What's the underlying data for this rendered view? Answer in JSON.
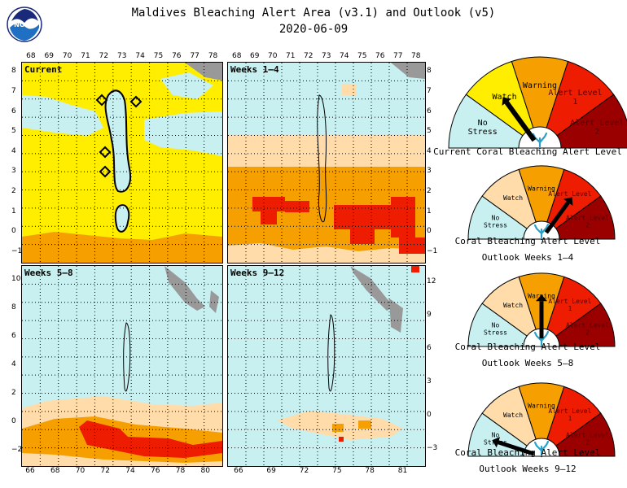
{
  "header": {
    "title": "Maldives Bleaching Alert Area (v3.1) and Outlook (v5)",
    "date": "2020-06-09",
    "logo_text": "NOAA"
  },
  "colors": {
    "no_stress": "#c8f0f0",
    "watch": "#ffdcaa",
    "watch_current": "#ffee00",
    "warning": "#f5a000",
    "alert1": "#ee1c00",
    "alert2": "#9b0000",
    "land": "#999999",
    "grid": "#000000"
  },
  "panels": [
    {
      "label": "Current",
      "top_ticks": [
        "68",
        "69",
        "70",
        "71",
        "72",
        "73",
        "74",
        "75",
        "76",
        "77",
        "78"
      ],
      "left_ticks": [
        "8",
        "7",
        "6",
        "5",
        "4",
        "3",
        "2",
        "1",
        "0",
        "−1"
      ]
    },
    {
      "label": "Weeks 1–4",
      "top_ticks": [
        "68",
        "69",
        "70",
        "71",
        "72",
        "73",
        "74",
        "75",
        "76",
        "77",
        "78"
      ],
      "right_ticks": [
        "8",
        "7",
        "6",
        "5",
        "4",
        "3",
        "2",
        "1",
        "0",
        "−1"
      ]
    },
    {
      "label": "Weeks 5–8",
      "left_ticks": [
        "10",
        "8",
        "6",
        "4",
        "2",
        "0",
        "−2"
      ],
      "bottom_ticks": [
        "66",
        "68",
        "70",
        "72",
        "74",
        "76",
        "78",
        "80"
      ]
    },
    {
      "label": "Weeks 9–12",
      "right_ticks": [
        "12",
        "9",
        "6",
        "3",
        "0",
        "−3"
      ],
      "bottom_ticks": [
        "66",
        "69",
        "72",
        "75",
        "78",
        "81"
      ]
    }
  ],
  "gauges": [
    {
      "caption_1": "Current Coral Bleaching Alert Level",
      "caption_2": "",
      "labels": {
        "no_stress": "No Stress",
        "watch": "Watch",
        "warning": "Warning",
        "alert1": "Alert Level 1",
        "alert2": "Alert Level 2"
      },
      "watch_color": "#ffee00",
      "pointer_level": "watch"
    },
    {
      "caption_1": "Coral Bleaching Alert Level",
      "caption_2": "Outlook Weeks 1–4",
      "labels": {
        "no_stress": "No Stress",
        "watch": "Watch",
        "warning": "Warning",
        "alert1": "Alert Level 1",
        "alert2": "Alert Level 2"
      },
      "watch_color": "#ffdcaa",
      "pointer_level": "alert1"
    },
    {
      "caption_1": "Coral Bleaching Alert Level",
      "caption_2": "Outlook Weeks 5–8",
      "labels": {
        "no_stress": "No Stress",
        "watch": "Watch",
        "warning": "Warning",
        "alert1": "Alert Level 1",
        "alert2": "Alert Level 2"
      },
      "watch_color": "#ffdcaa",
      "pointer_level": "warning"
    },
    {
      "caption_1": "Coral Bleaching Alert Level",
      "caption_2": "Outlook Weeks 9–12",
      "labels": {
        "no_stress": "No Stress",
        "watch": "Watch",
        "warning": "Warning",
        "alert1": "Alert Level 1",
        "alert2": "Alert Level 2"
      },
      "watch_color": "#ffdcaa",
      "pointer_level": "no_stress"
    }
  ]
}
